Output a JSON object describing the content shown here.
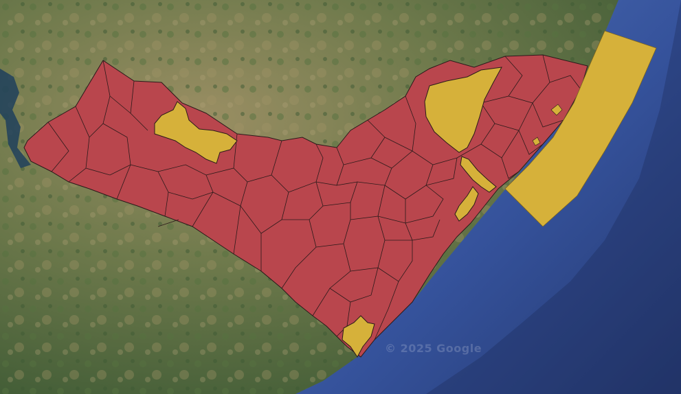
{
  "map": {
    "attribution": "© 2025 Google",
    "legend_colors": {
      "region_red": "#b9464d",
      "region_yellow": "#d6b13a",
      "ocean": "#3f5ea6",
      "land_dark": "#4d6738",
      "land_light": "#8c8a5e",
      "border": "#2a1a1a"
    }
  }
}
